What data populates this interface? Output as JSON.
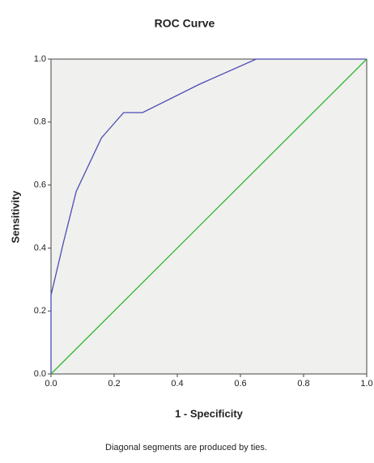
{
  "chart_data": {
    "type": "line",
    "title": "ROC Curve",
    "x_label": "1 - Specificity",
    "y_label": "Sensitivity",
    "footnote": "Diagonal segments are produced by ties.",
    "series": [
      {
        "color": "#4b4bb4",
        "x": [
          0,
          0,
          0.04,
          0.08,
          0.16,
          0.23,
          0.29,
          0.47,
          0.65,
          1.0
        ],
        "values": [
          0,
          0.25,
          0.42,
          0.58,
          0.75,
          0.83,
          0.83,
          0.92,
          1.0,
          1.0
        ]
      },
      {
        "color": "#2eb82e",
        "x": [
          0,
          1
        ],
        "values": [
          0,
          1
        ]
      }
    ],
    "xlim": [
      0,
      1
    ],
    "ylim": [
      0,
      1
    ],
    "xticks": [
      {
        "value": 0,
        "label": "0.0"
      },
      {
        "value": 0.2,
        "label": "0.2"
      },
      {
        "value": 0.4,
        "label": "0.4"
      },
      {
        "value": 0.6,
        "label": "0.6"
      },
      {
        "value": 0.8,
        "label": "0.8"
      },
      {
        "value": 1,
        "label": "1.0"
      }
    ],
    "yticks": [
      {
        "value": 0,
        "label": "0.0"
      },
      {
        "value": 0.2,
        "label": "0.2"
      },
      {
        "value": 0.4,
        "label": "0.4"
      },
      {
        "value": 0.6,
        "label": "0.6"
      },
      {
        "value": 0.8,
        "label": "0.8"
      },
      {
        "value": 1,
        "label": "1.0"
      }
    ]
  }
}
